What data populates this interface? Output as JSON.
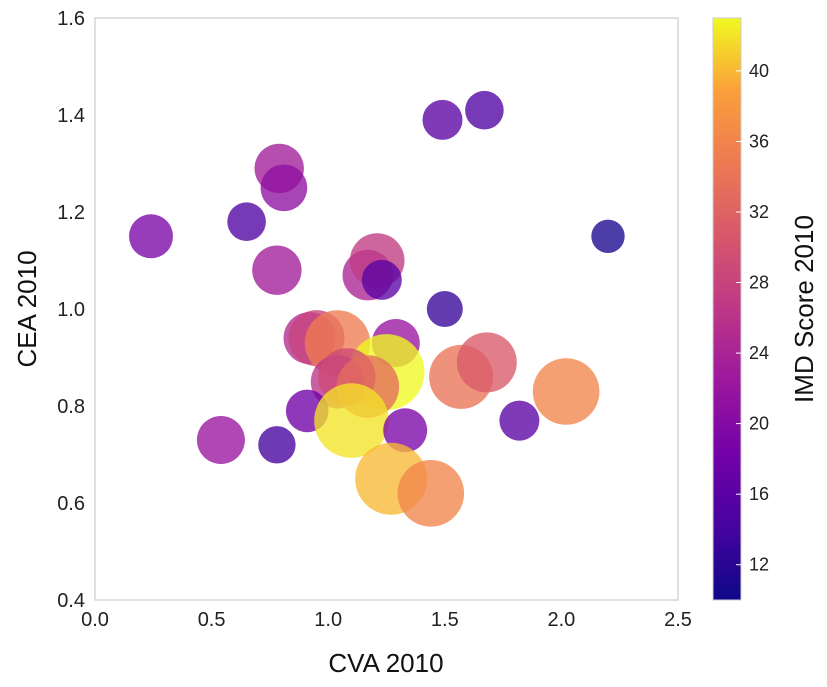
{
  "chart_data": {
    "type": "scatter",
    "title": "",
    "xlabel": "CVA 2010",
    "ylabel": "CEA 2010",
    "colorbar_label": "IMD Score 2010",
    "xlim": [
      0.0,
      2.5
    ],
    "ylim": [
      0.4,
      1.6
    ],
    "x_ticks": [
      0.0,
      0.5,
      1.0,
      1.5,
      2.0,
      2.5
    ],
    "x_tick_labels": [
      "0.0",
      "0.5",
      "1.0",
      "1.5",
      "2.0",
      "2.5"
    ],
    "y_ticks": [
      0.4,
      0.6,
      0.8,
      1.0,
      1.2,
      1.4,
      1.6
    ],
    "y_tick_labels": [
      "0.4",
      "0.6",
      "0.8",
      "1.0",
      "1.2",
      "1.4",
      "1.6"
    ],
    "colorbar_range": [
      10,
      43
    ],
    "colorbar_ticks": [
      12,
      16,
      20,
      24,
      28,
      32,
      36,
      40
    ],
    "colorbar_tick_labels": [
      "12",
      "16",
      "20",
      "24",
      "28",
      "32",
      "36",
      "40"
    ],
    "colormap": "plasma",
    "grid": false,
    "points": [
      {
        "x": 0.24,
        "y": 1.15,
        "imd": 19
      },
      {
        "x": 0.65,
        "y": 1.18,
        "imd": 15
      },
      {
        "x": 0.79,
        "y": 1.29,
        "imd": 23
      },
      {
        "x": 0.81,
        "y": 1.25,
        "imd": 21
      },
      {
        "x": 0.78,
        "y": 1.08,
        "imd": 23
      },
      {
        "x": 1.49,
        "y": 1.39,
        "imd": 16
      },
      {
        "x": 1.67,
        "y": 1.41,
        "imd": 15
      },
      {
        "x": 2.2,
        "y": 1.15,
        "imd": 11
      },
      {
        "x": 1.17,
        "y": 1.07,
        "imd": 24
      },
      {
        "x": 1.21,
        "y": 1.1,
        "imd": 27
      },
      {
        "x": 1.23,
        "y": 1.06,
        "imd": 16
      },
      {
        "x": 1.5,
        "y": 1.0,
        "imd": 13
      },
      {
        "x": 0.92,
        "y": 0.94,
        "imd": 25
      },
      {
        "x": 0.95,
        "y": 0.94,
        "imd": 28
      },
      {
        "x": 1.04,
        "y": 0.93,
        "imd": 35
      },
      {
        "x": 1.29,
        "y": 0.93,
        "imd": 22
      },
      {
        "x": 1.25,
        "y": 0.87,
        "imd": 43
      },
      {
        "x": 1.57,
        "y": 0.86,
        "imd": 34
      },
      {
        "x": 1.68,
        "y": 0.89,
        "imd": 31
      },
      {
        "x": 2.02,
        "y": 0.83,
        "imd": 36
      },
      {
        "x": 1.04,
        "y": 0.85,
        "imd": 26
      },
      {
        "x": 1.08,
        "y": 0.86,
        "imd": 29
      },
      {
        "x": 1.17,
        "y": 0.84,
        "imd": 33
      },
      {
        "x": 0.91,
        "y": 0.79,
        "imd": 18
      },
      {
        "x": 1.1,
        "y": 0.77,
        "imd": 42
      },
      {
        "x": 1.33,
        "y": 0.75,
        "imd": 19
      },
      {
        "x": 1.82,
        "y": 0.77,
        "imd": 16
      },
      {
        "x": 0.54,
        "y": 0.73,
        "imd": 22
      },
      {
        "x": 0.78,
        "y": 0.72,
        "imd": 14
      },
      {
        "x": 1.27,
        "y": 0.65,
        "imd": 40
      },
      {
        "x": 1.44,
        "y": 0.62,
        "imd": 36
      }
    ]
  }
}
